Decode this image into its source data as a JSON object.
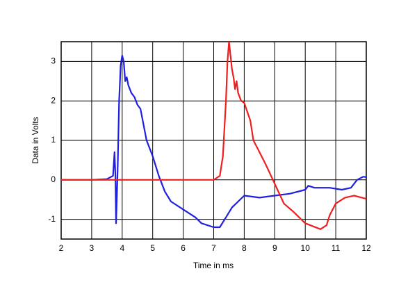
{
  "chart_data": {
    "type": "line",
    "xlabel": "Time in ms",
    "ylabel": "Data in Volts",
    "xlim": [
      2,
      12
    ],
    "xticks": [
      2,
      3,
      4,
      5,
      6,
      7,
      8,
      9,
      10,
      11,
      12
    ],
    "ylim": [
      -1.5,
      3.5
    ],
    "yticks": [
      -1,
      0,
      1,
      2,
      3
    ],
    "grid": true,
    "series": [
      {
        "color": "#1f1fe0",
        "x": [
          2.0,
          3.0,
          3.5,
          3.7,
          3.75,
          3.78,
          3.8,
          3.85,
          3.9,
          3.95,
          4.0,
          4.05,
          4.1,
          4.15,
          4.2,
          4.3,
          4.4,
          4.5,
          4.6,
          4.7,
          4.8,
          5.0,
          5.2,
          5.4,
          5.6,
          6.0,
          6.4,
          6.6,
          7.0,
          7.2,
          7.4,
          7.6,
          8.0,
          8.5,
          9.0,
          9.5,
          10.0,
          10.1,
          10.3,
          10.8,
          11.2,
          11.5,
          11.7,
          11.9,
          12.0
        ],
        "values": [
          0,
          0,
          0.02,
          0.1,
          0.7,
          0.1,
          -1.1,
          0.2,
          2.0,
          2.9,
          3.15,
          3.0,
          2.5,
          2.6,
          2.4,
          2.2,
          2.1,
          1.9,
          1.8,
          1.4,
          1.0,
          0.6,
          0.1,
          -0.3,
          -0.55,
          -0.75,
          -0.95,
          -1.1,
          -1.2,
          -1.2,
          -0.95,
          -0.7,
          -0.4,
          -0.45,
          -0.4,
          -0.35,
          -0.25,
          -0.15,
          -0.2,
          -0.2,
          -0.25,
          -0.2,
          0.0,
          0.08,
          0.07
        ]
      },
      {
        "color": "#f01f1f",
        "x": [
          2.0,
          7.0,
          7.2,
          7.3,
          7.4,
          7.45,
          7.5,
          7.6,
          7.65,
          7.7,
          7.75,
          7.8,
          7.9,
          8.0,
          8.2,
          8.3,
          8.5,
          8.7,
          9.0,
          9.3,
          9.6,
          10.0,
          10.5,
          10.7,
          10.8,
          11.0,
          11.3,
          11.6,
          12.0
        ],
        "values": [
          0,
          0,
          0.1,
          0.6,
          2.0,
          3.0,
          3.5,
          2.8,
          2.6,
          2.3,
          2.5,
          2.2,
          2.0,
          1.95,
          1.5,
          1.0,
          0.7,
          0.4,
          -0.1,
          -0.6,
          -0.8,
          -1.1,
          -1.25,
          -1.15,
          -0.9,
          -0.6,
          -0.45,
          -0.4,
          -0.48
        ]
      }
    ]
  }
}
